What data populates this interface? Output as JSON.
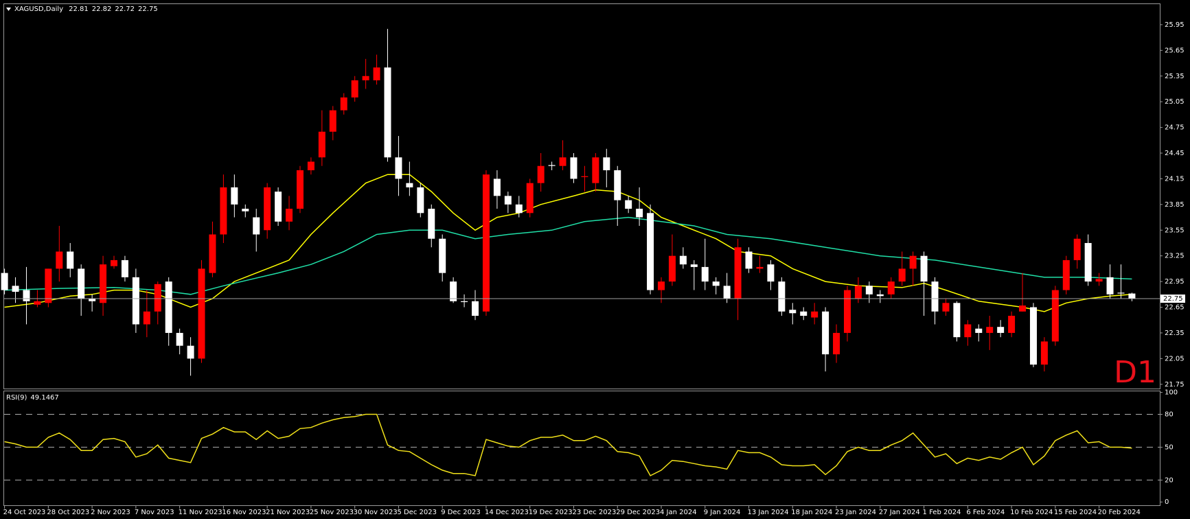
{
  "chart_data": [
    {
      "type": "candlestick",
      "title": "XAGUSD,Daily",
      "annotation": "D1",
      "categories": [
        "24 Oct 2023",
        null,
        null,
        null,
        "28 Oct 2023",
        null,
        null,
        null,
        "2 Nov 2023",
        null,
        null,
        null,
        "7 Nov 2023",
        null,
        null,
        null,
        "11 Nov 2023",
        null,
        null,
        null,
        "16 Nov 2023",
        null,
        null,
        null,
        "21 Nov 2023",
        null,
        null,
        null,
        "25 Nov 2023",
        null,
        null,
        null,
        "30 Nov 2023",
        null,
        null,
        null,
        "5 Dec 2023",
        null,
        null,
        null,
        "9 Dec 2023",
        null,
        null,
        null,
        "14 Dec 2023",
        null,
        null,
        null,
        "19 Dec 2023",
        null,
        null,
        null,
        "23 Dec 2023",
        null,
        null,
        null,
        "29 Dec 2023",
        null,
        null,
        null,
        "4 Jan 2024",
        null,
        null,
        null,
        "9 Jan 2024",
        null,
        null,
        null,
        "13 Jan 2024",
        null,
        null,
        null,
        "18 Jan 2024",
        null,
        null,
        null,
        "23 Jan 2024",
        null,
        null,
        null,
        "27 Jan 2024",
        null,
        null,
        null,
        "1 Feb 2024",
        null,
        null,
        null,
        "6 Feb 2024",
        null,
        null,
        null,
        "10 Feb 2024",
        null,
        null,
        null,
        "15 Feb 2024",
        null,
        null,
        null,
        "20 Feb 2024",
        null,
        null,
        null
      ],
      "open": [
        23.05,
        22.9,
        22.85,
        22.68,
        22.7,
        23.1,
        23.3,
        23.1,
        22.75,
        22.7,
        23.13,
        23.2,
        23.0,
        22.45,
        22.6,
        22.95,
        22.35,
        22.2,
        22.05,
        23.05,
        23.5,
        24.05,
        23.8,
        23.7,
        23.55,
        24.0,
        23.65,
        23.8,
        24.25,
        24.4,
        24.7,
        24.95,
        25.1,
        25.3,
        25.3,
        25.45,
        24.4,
        24.1,
        24.05,
        23.8,
        23.45,
        22.95,
        22.72,
        22.72,
        22.6,
        24.15,
        23.95,
        23.85,
        23.75,
        24.1,
        24.31,
        24.3,
        24.4,
        24.17,
        24.1,
        24.4,
        24.25,
        23.9,
        23.8,
        23.75,
        22.85,
        22.95,
        23.25,
        23.15,
        23.12,
        22.95,
        22.9,
        22.75,
        23.3,
        23.1,
        23.15,
        22.95,
        22.62,
        22.6,
        22.53,
        22.6,
        22.1,
        22.35,
        22.75,
        22.9,
        22.8,
        22.8,
        22.95,
        23.1,
        23.25,
        22.95,
        22.6,
        22.7,
        22.3,
        22.4,
        22.35,
        22.42,
        22.35,
        22.6,
        22.65,
        21.98,
        22.25,
        22.85,
        23.2,
        23.4,
        22.95,
        23.0,
        22.82,
        22.81
      ],
      "high": [
        23.1,
        23.0,
        23.12,
        22.85,
        23.1,
        23.6,
        23.4,
        23.15,
        22.8,
        23.25,
        23.25,
        23.25,
        23.1,
        22.85,
        22.95,
        23.0,
        22.4,
        22.3,
        23.2,
        23.65,
        24.2,
        24.2,
        23.85,
        23.8,
        24.1,
        24.05,
        23.95,
        24.3,
        24.4,
        24.95,
        25.0,
        25.15,
        25.35,
        25.55,
        25.6,
        25.9,
        24.65,
        24.35,
        24.1,
        23.85,
        23.5,
        23.0,
        22.8,
        22.85,
        24.25,
        24.25,
        24.0,
        23.95,
        24.15,
        24.45,
        24.35,
        24.6,
        24.45,
        24.3,
        24.45,
        24.5,
        24.3,
        23.95,
        24.05,
        23.85,
        23.0,
        23.5,
        23.35,
        23.2,
        23.45,
        23.0,
        23.05,
        23.45,
        23.35,
        23.25,
        23.2,
        23.0,
        22.7,
        22.65,
        22.7,
        22.65,
        22.45,
        22.9,
        23.0,
        22.95,
        22.85,
        23.0,
        23.3,
        23.3,
        23.3,
        23.0,
        22.75,
        22.72,
        22.5,
        22.45,
        22.55,
        22.5,
        22.6,
        23.05,
        22.7,
        22.3,
        22.9,
        23.25,
        23.5,
        23.5,
        23.05,
        23.15,
        23.15,
        22.82
      ],
      "low": [
        22.8,
        22.7,
        22.45,
        22.65,
        22.65,
        22.95,
        23.0,
        22.55,
        22.6,
        22.55,
        23.1,
        22.95,
        22.35,
        22.3,
        22.45,
        22.2,
        22.1,
        21.85,
        22.0,
        23.0,
        23.4,
        23.7,
        23.7,
        23.3,
        23.45,
        23.6,
        23.55,
        23.75,
        24.2,
        24.3,
        24.6,
        24.9,
        25.05,
        25.2,
        25.25,
        24.35,
        23.95,
        23.95,
        23.7,
        23.35,
        22.95,
        22.7,
        22.65,
        22.5,
        22.55,
        23.8,
        23.75,
        23.7,
        23.7,
        24.0,
        24.25,
        24.25,
        24.1,
        24.0,
        24.0,
        24.05,
        23.6,
        23.75,
        23.6,
        22.8,
        22.7,
        22.9,
        23.1,
        22.85,
        22.85,
        22.8,
        22.7,
        22.5,
        23.05,
        23.05,
        22.85,
        22.55,
        22.45,
        22.5,
        22.45,
        21.9,
        22.0,
        22.25,
        22.7,
        22.7,
        22.7,
        22.75,
        22.9,
        22.9,
        22.55,
        22.45,
        22.55,
        22.25,
        22.2,
        22.25,
        22.15,
        22.3,
        22.3,
        22.6,
        21.95,
        21.9,
        22.2,
        22.8,
        23.1,
        22.9,
        22.9,
        22.75,
        22.75,
        22.72
      ],
      "close": [
        22.85,
        22.83,
        22.72,
        22.72,
        23.1,
        23.3,
        23.1,
        22.75,
        22.72,
        23.15,
        23.2,
        23.0,
        22.45,
        22.6,
        22.92,
        22.35,
        22.2,
        22.05,
        23.1,
        23.5,
        24.05,
        23.85,
        23.77,
        23.5,
        24.05,
        23.65,
        23.8,
        24.25,
        24.35,
        24.7,
        24.95,
        25.1,
        25.3,
        25.35,
        25.45,
        24.4,
        24.15,
        24.05,
        23.75,
        23.45,
        23.05,
        22.72,
        22.71,
        22.55,
        24.2,
        23.95,
        23.85,
        23.75,
        24.1,
        24.3,
        24.3,
        24.4,
        24.15,
        24.18,
        24.4,
        24.25,
        23.9,
        23.8,
        23.7,
        22.85,
        22.95,
        23.25,
        23.15,
        23.12,
        22.95,
        22.9,
        22.75,
        23.35,
        23.1,
        23.12,
        22.95,
        22.6,
        22.58,
        22.55,
        22.6,
        22.1,
        22.35,
        22.85,
        22.9,
        22.8,
        22.78,
        22.95,
        23.1,
        23.25,
        22.95,
        22.6,
        22.7,
        22.3,
        22.45,
        22.35,
        22.42,
        22.35,
        22.55,
        22.67,
        21.98,
        22.25,
        22.85,
        23.2,
        23.45,
        22.95,
        22.98,
        22.8,
        22.81,
        22.75
      ],
      "up_color": "#ff0000",
      "down_color": "#ffffff",
      "ylim": [
        21.7,
        26.19
      ],
      "yticks": [
        21.75,
        22.05,
        22.35,
        22.65,
        22.95,
        23.25,
        23.55,
        23.85,
        24.15,
        24.45,
        24.75,
        25.05,
        25.35,
        25.65,
        25.95
      ],
      "series": [
        {
          "color": "#ffff00",
          "x": [
            0,
            3,
            6,
            8,
            10,
            12,
            14,
            17,
            19,
            21,
            24,
            26,
            28,
            30,
            33,
            35,
            37,
            39,
            41,
            43,
            45,
            47,
            49,
            52,
            54,
            56,
            58,
            60,
            62,
            65,
            67,
            70,
            72,
            75,
            78,
            82,
            84,
            86,
            89,
            93,
            95,
            97,
            99,
            101,
            103
          ],
          "values": [
            22.65,
            22.7,
            22.78,
            22.8,
            22.85,
            22.85,
            22.8,
            22.65,
            22.75,
            22.95,
            23.1,
            23.2,
            23.5,
            23.75,
            24.1,
            24.2,
            24.2,
            24.0,
            23.75,
            23.55,
            23.7,
            23.75,
            23.85,
            23.95,
            24.02,
            24.0,
            23.9,
            23.7,
            23.6,
            23.45,
            23.3,
            23.25,
            23.1,
            22.95,
            22.9,
            22.88,
            22.93,
            22.85,
            22.72,
            22.65,
            22.6,
            22.7,
            22.75,
            22.78,
            22.8
          ]
        },
        {
          "color": "#20e0a8",
          "x": [
            0,
            5,
            10,
            14,
            17,
            20,
            25,
            28,
            31,
            34,
            37,
            40,
            43,
            46,
            50,
            53,
            57,
            60,
            63,
            66,
            70,
            75,
            80,
            85,
            90,
            95,
            99,
            103
          ],
          "values": [
            22.85,
            22.87,
            22.88,
            22.85,
            22.8,
            22.9,
            23.05,
            23.15,
            23.3,
            23.5,
            23.55,
            23.55,
            23.45,
            23.5,
            23.55,
            23.65,
            23.7,
            23.65,
            23.6,
            23.5,
            23.45,
            23.35,
            23.25,
            23.2,
            23.1,
            23.0,
            23.0,
            22.98
          ]
        }
      ]
    },
    {
      "type": "line",
      "title": "RSI(9)",
      "color": "#f2e21a",
      "values": [
        55,
        53,
        50,
        50,
        59,
        63,
        57,
        47,
        47,
        57,
        58,
        55,
        41,
        44,
        52,
        40,
        38,
        36,
        58,
        62,
        68,
        64,
        64,
        57,
        65,
        58,
        60,
        67,
        68,
        72,
        75,
        77,
        78,
        80,
        80,
        52,
        47,
        46,
        40,
        34,
        29,
        26,
        26,
        24,
        57,
        54,
        51,
        50,
        56,
        59,
        59,
        61,
        56,
        56,
        60,
        56,
        46,
        45,
        42,
        24,
        29,
        38,
        37,
        35,
        33,
        32,
        30,
        47,
        45,
        45,
        41,
        34,
        33,
        33,
        34,
        25,
        33,
        46,
        50,
        47,
        47,
        52,
        56,
        63,
        52,
        41,
        44,
        35,
        40,
        38,
        41,
        39,
        45,
        50,
        34,
        42,
        56,
        61,
        65,
        54,
        55,
        50,
        50,
        49.1467
      ],
      "ylim": [
        -3,
        101
      ],
      "yticks": [
        0,
        20,
        50,
        80,
        100
      ],
      "levels": [
        20,
        50,
        80
      ]
    }
  ]
}
